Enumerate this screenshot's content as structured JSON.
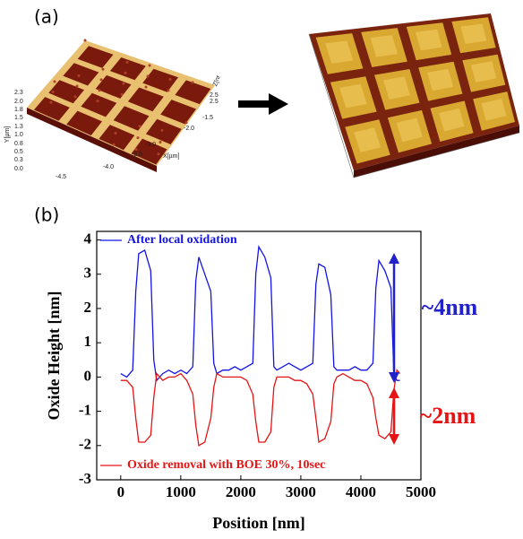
{
  "panel_a_label": "(a)",
  "afm_left": {
    "y_label": "Y[µm]",
    "y_ticks": [
      "2.3",
      "2.0",
      "1.8",
      "1.5",
      "1.3",
      "1.0",
      "0.8",
      "0.5",
      "0.3",
      "0.0"
    ],
    "x_label": "X[µm]",
    "x_ticks": [
      "-4.5",
      "-4.0",
      "-3.5",
      "-3.0",
      "-2.0",
      "-1.5"
    ],
    "z_label": "Z[nr",
    "z_ticks": [
      "2.5",
      "2.5"
    ]
  },
  "panel_b_label": "(b)",
  "chart_data": {
    "type": "line",
    "xlabel": "Position [nm]",
    "ylabel": "Oxide Height [nm]",
    "x": [
      0,
      100,
      200,
      250,
      300,
      400,
      500,
      550,
      600,
      700,
      800,
      900,
      1000,
      1100,
      1200,
      1250,
      1300,
      1400,
      1500,
      1550,
      1600,
      1700,
      1800,
      1900,
      2000,
      2100,
      2200,
      2250,
      2300,
      2400,
      2500,
      2550,
      2600,
      2700,
      2800,
      2900,
      3000,
      3100,
      3200,
      3250,
      3300,
      3400,
      3500,
      3550,
      3600,
      3700,
      3800,
      3900,
      4000,
      4100,
      4200,
      4250,
      4300,
      4400,
      4500,
      4550,
      4600,
      4650
    ],
    "series": [
      {
        "name": "After local oxidation",
        "color": "#1414e6",
        "values": [
          0.1,
          0,
          0.2,
          2.5,
          3.6,
          3.7,
          3.1,
          0.5,
          -0.1,
          0.1,
          0.2,
          0.1,
          0.2,
          0.1,
          0.3,
          2.8,
          3.5,
          3.0,
          2.5,
          0.4,
          0.1,
          0.2,
          0.2,
          0.3,
          0.2,
          0.3,
          0.4,
          3.0,
          3.8,
          3.5,
          2.9,
          0.3,
          0.2,
          0.3,
          0.4,
          0.3,
          0.2,
          0.3,
          0.4,
          2.7,
          3.3,
          3.2,
          2.4,
          0.3,
          0.2,
          0.2,
          0.2,
          0.3,
          0.2,
          0.2,
          0.4,
          2.6,
          3.4,
          3.1,
          2.6,
          0.1,
          -0.1,
          -0.1
        ]
      },
      {
        "name": "Oxide removal with BOE 30%, 10sec",
        "color": "#e61414",
        "values": [
          -0.1,
          -0.1,
          -0.3,
          -1.2,
          -1.9,
          -1.9,
          -1.7,
          -0.6,
          0.1,
          -0.1,
          0,
          0,
          0.1,
          -0.1,
          -0.5,
          -1.4,
          -2.0,
          -1.9,
          -1.2,
          -0.3,
          0.1,
          0,
          0,
          0,
          0,
          -0.1,
          -0.5,
          -1.3,
          -1.9,
          -1.9,
          -1.6,
          -0.3,
          0,
          0,
          0,
          -0.1,
          -0.1,
          -0.2,
          -0.5,
          -1.2,
          -1.9,
          -1.8,
          -1.3,
          -0.2,
          0,
          0.1,
          0,
          -0.1,
          -0.1,
          -0.2,
          -0.6,
          -1.2,
          -1.7,
          -1.8,
          -1.6,
          -0.4,
          0.2,
          0.1
        ]
      }
    ],
    "xlim": [
      -400,
      5000
    ],
    "xticks": [
      0,
      1000,
      2000,
      3000,
      4000,
      5000
    ],
    "ylim": [
      -3,
      4.25
    ],
    "yticks": [
      -3,
      -2,
      -1,
      0,
      1,
      2,
      3,
      4
    ],
    "annotations": [
      {
        "text": "~4nm",
        "color": "#2222cc"
      },
      {
        "text": "~2nm",
        "color": "#e61414"
      }
    ]
  }
}
